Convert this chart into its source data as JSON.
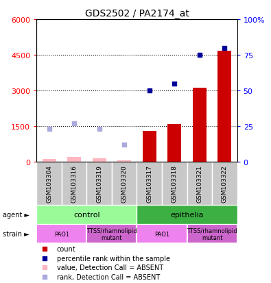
{
  "title": "GDS2502 / PA2174_at",
  "samples": [
    "GSM103304",
    "GSM103316",
    "GSM103319",
    "GSM103320",
    "GSM103317",
    "GSM103318",
    "GSM103321",
    "GSM103322"
  ],
  "count_values": [
    null,
    null,
    null,
    null,
    1300,
    1580,
    3100,
    4680
  ],
  "count_absent": [
    120,
    200,
    140,
    45,
    null,
    null,
    null,
    null
  ],
  "rank_values": [
    null,
    null,
    null,
    null,
    3000,
    3300,
    4500,
    4800
  ],
  "rank_absent": [
    1380,
    1600,
    1380,
    720,
    null,
    null,
    null,
    null
  ],
  "ylim_left": [
    0,
    6000
  ],
  "ylim_right": [
    0,
    100
  ],
  "yticks_left": [
    0,
    1500,
    3000,
    4500,
    6000
  ],
  "yticks_right": [
    0,
    25,
    50,
    75,
    100
  ],
  "ytick_labels_left": [
    "0",
    "1500",
    "3000",
    "4500",
    "6000"
  ],
  "ytick_labels_right": [
    "0",
    "25",
    "50",
    "75",
    "100%"
  ],
  "agent_groups": [
    {
      "label": "control",
      "span": [
        0,
        4
      ],
      "color": "#98FB98"
    },
    {
      "label": "epithelia",
      "span": [
        4,
        8
      ],
      "color": "#3CB043"
    }
  ],
  "strain_groups": [
    {
      "label": "PAO1",
      "span": [
        0,
        2
      ],
      "color": "#EE82EE"
    },
    {
      "label": "TTSS/rhamnolipid\nmutant",
      "span": [
        2,
        4
      ],
      "color": "#CC66CC"
    },
    {
      "label": "PAO1",
      "span": [
        4,
        6
      ],
      "color": "#EE82EE"
    },
    {
      "label": "TTSS/rhamnolipid\nmutant",
      "span": [
        6,
        8
      ],
      "color": "#CC66CC"
    }
  ],
  "legend_items": [
    {
      "color": "#CC0000",
      "label": "count"
    },
    {
      "color": "#000099",
      "label": "percentile rank within the sample"
    },
    {
      "color": "#FFB6C1",
      "label": "value, Detection Call = ABSENT"
    },
    {
      "color": "#AAAADD",
      "label": "rank, Detection Call = ABSENT"
    }
  ],
  "bar_color": "#CC0000",
  "absent_bar_color": "#FFB6C1",
  "rank_dot_color": "#000099",
  "rank_absent_dot_color": "#AAAADD"
}
